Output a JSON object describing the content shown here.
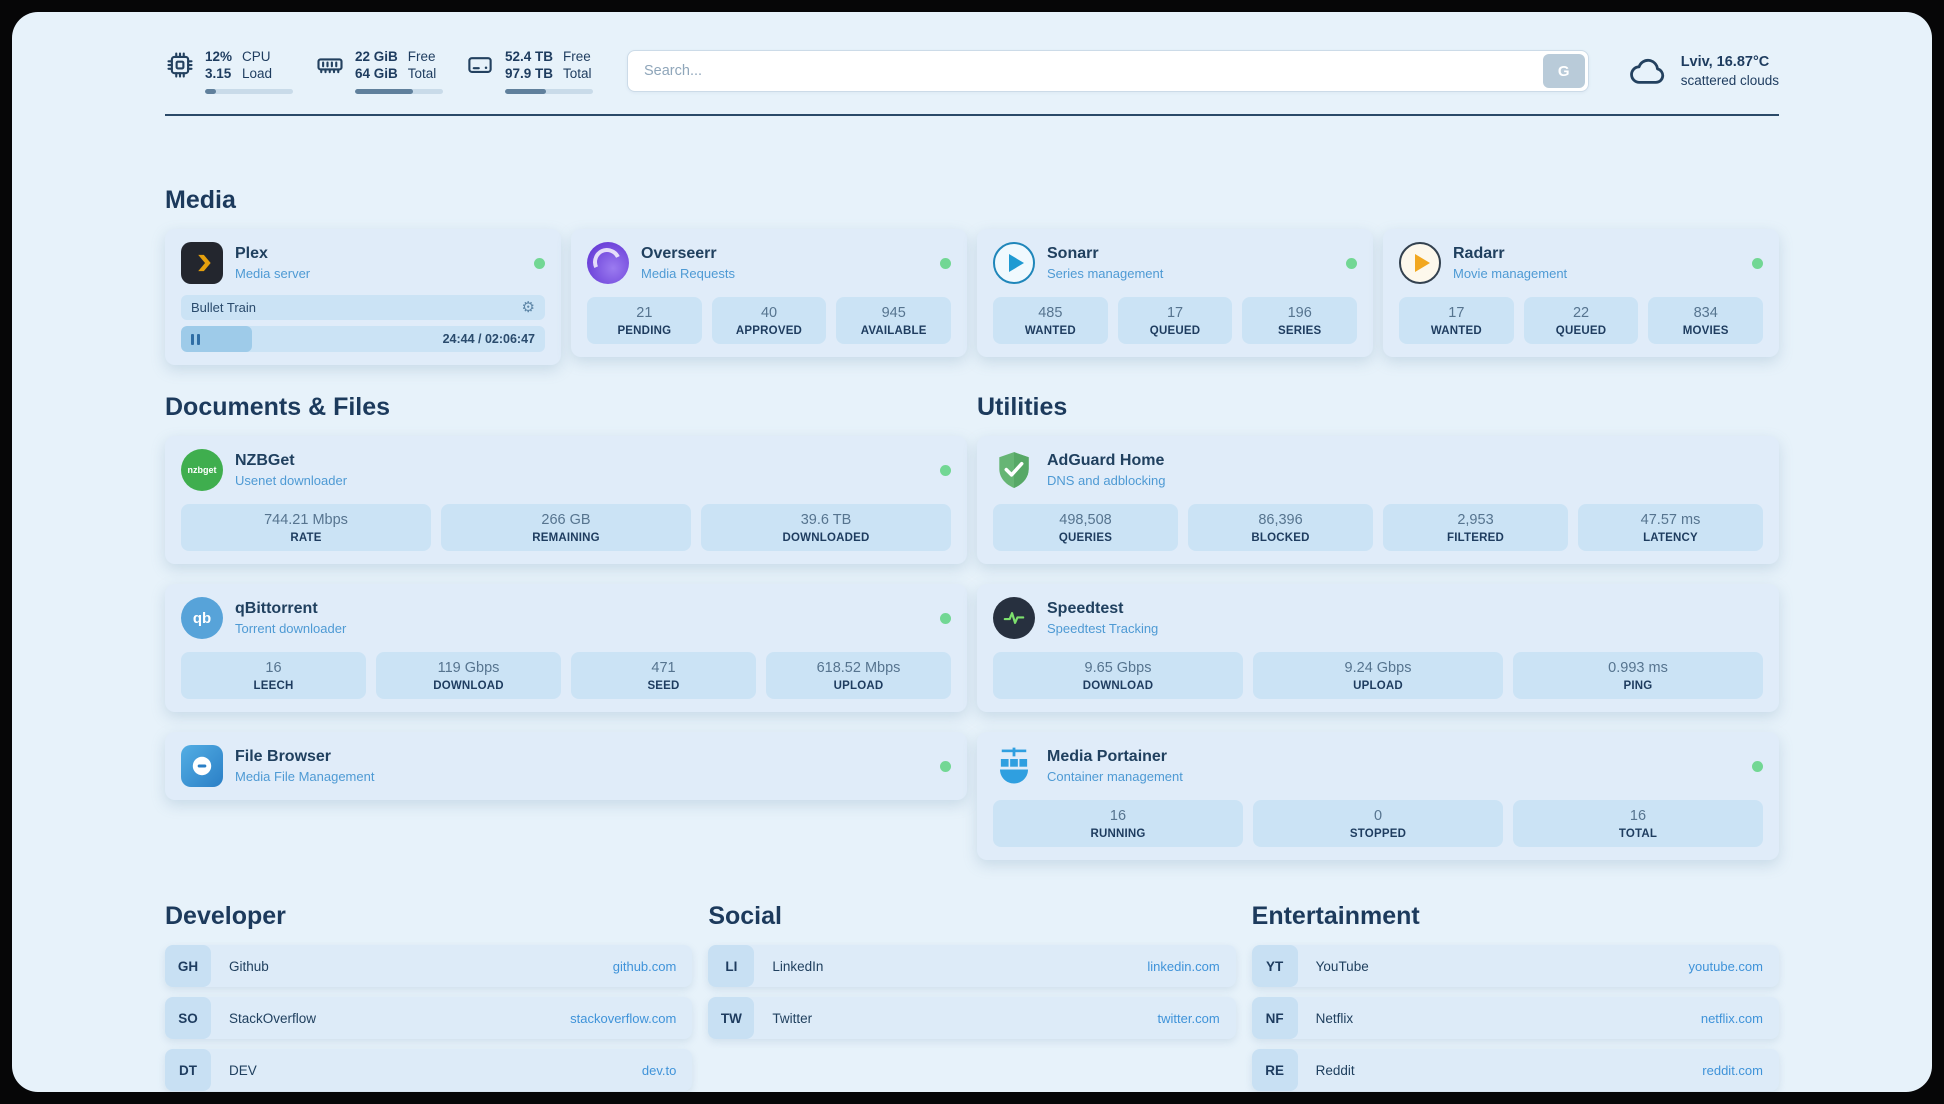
{
  "theme": {
    "page_bg": "#e7f2fa",
    "card_bg": "#e0ecf9",
    "stat_bg": "#cbe3f5",
    "ink": "#1e3c5f",
    "sub_blue": "#4e9ad4",
    "link_blue": "#3f93d9",
    "online_green": "#72d794",
    "bar_fill": "#60809c",
    "bar_track": "#c9dbe9"
  },
  "icons": {
    "gear": "⚙"
  },
  "topbar": {
    "cpu": {
      "value": "12%",
      "sub": "3.15",
      "label_top": "CPU",
      "label_bottom": "Load",
      "percent": 12
    },
    "ram": {
      "value": "22 GiB",
      "sub": "64 GiB",
      "label_top": "Free",
      "label_bottom": "Total",
      "percent": 66
    },
    "disk": {
      "value": "52.4 TB",
      "sub": "97.9 TB",
      "label_top": "Free",
      "label_bottom": "Total",
      "percent": 47
    },
    "search": {
      "placeholder": "Search...",
      "button_label": "G"
    },
    "weather": {
      "location": "Lviv, 16.87°C",
      "description": "scattered clouds"
    }
  },
  "sections": {
    "media": {
      "title": "Media",
      "apps": [
        {
          "name": "Plex",
          "subtitle": "Media server",
          "icon": "plex-icon",
          "online": true,
          "now_playing": {
            "title": "Bullet Train",
            "time": "24:44 / 02:06:47",
            "progress_percent": 19.5
          }
        },
        {
          "name": "Overseerr",
          "subtitle": "Media Requests",
          "icon": "overseerr-icon",
          "online": true,
          "stats": [
            {
              "value": "21",
              "label": "PENDING"
            },
            {
              "value": "40",
              "label": "APPROVED"
            },
            {
              "value": "945",
              "label": "AVAILABLE"
            }
          ]
        },
        {
          "name": "Sonarr",
          "subtitle": "Series management",
          "icon": "sonarr-icon",
          "online": true,
          "stats": [
            {
              "value": "485",
              "label": "WANTED"
            },
            {
              "value": "17",
              "label": "QUEUED"
            },
            {
              "value": "196",
              "label": "SERIES"
            }
          ]
        },
        {
          "name": "Radarr",
          "subtitle": "Movie management",
          "icon": "radarr-icon",
          "online": true,
          "stats": [
            {
              "value": "17",
              "label": "WANTED"
            },
            {
              "value": "22",
              "label": "QUEUED"
            },
            {
              "value": "834",
              "label": "MOVIES"
            }
          ]
        }
      ]
    },
    "documents": {
      "title": "Documents & Files",
      "apps": [
        {
          "name": "NZBGet",
          "subtitle": "Usenet downloader",
          "icon": "nzbget-icon",
          "icon_text": "nzbget",
          "online": true,
          "stats": [
            {
              "value": "744.21 Mbps",
              "label": "RATE"
            },
            {
              "value": "266 GB",
              "label": "REMAINING"
            },
            {
              "value": "39.6 TB",
              "label": "DOWNLOADED"
            }
          ]
        },
        {
          "name": "qBittorrent",
          "subtitle": "Torrent downloader",
          "icon": "qbittorrent-icon",
          "icon_text": "qb",
          "online": true,
          "stats": [
            {
              "value": "16",
              "label": "LEECH"
            },
            {
              "value": "119 Gbps",
              "label": "DOWNLOAD"
            },
            {
              "value": "471",
              "label": "SEED"
            },
            {
              "value": "618.52 Mbps",
              "label": "UPLOAD"
            }
          ]
        },
        {
          "name": "File Browser",
          "subtitle": "Media File Management",
          "icon": "filebrowser-icon",
          "online": true,
          "stats": []
        }
      ]
    },
    "utilities": {
      "title": "Utilities",
      "apps": [
        {
          "name": "AdGuard Home",
          "subtitle": "DNS and adblocking",
          "icon": "adguard-icon",
          "stats": [
            {
              "value": "498,508",
              "label": "QUERIES"
            },
            {
              "value": "86,396",
              "label": "BLOCKED"
            },
            {
              "value": "2,953",
              "label": "FILTERED"
            },
            {
              "value": "47.57 ms",
              "label": "LATENCY"
            }
          ]
        },
        {
          "name": "Speedtest",
          "subtitle": "Speedtest Tracking",
          "icon": "speedtest-icon",
          "stats": [
            {
              "value": "9.65 Gbps",
              "label": "DOWNLOAD"
            },
            {
              "value": "9.24 Gbps",
              "label": "UPLOAD"
            },
            {
              "value": "0.993 ms",
              "label": "PING"
            }
          ]
        },
        {
          "name": "Media Portainer",
          "subtitle": "Container management",
          "icon": "portainer-icon",
          "online": true,
          "stats": [
            {
              "value": "16",
              "label": "RUNNING"
            },
            {
              "value": "0",
              "label": "STOPPED"
            },
            {
              "value": "16",
              "label": "TOTAL"
            }
          ]
        }
      ]
    }
  },
  "bookmarks": [
    {
      "title": "Developer",
      "links": [
        {
          "abbr": "GH",
          "name": "Github",
          "domain": "github.com"
        },
        {
          "abbr": "SO",
          "name": "StackOverflow",
          "domain": "stackoverflow.com"
        },
        {
          "abbr": "DT",
          "name": "DEV",
          "domain": "dev.to"
        }
      ]
    },
    {
      "title": "Social",
      "links": [
        {
          "abbr": "LI",
          "name": "LinkedIn",
          "domain": "linkedin.com"
        },
        {
          "abbr": "TW",
          "name": "Twitter",
          "domain": "twitter.com"
        }
      ]
    },
    {
      "title": "Entertainment",
      "links": [
        {
          "abbr": "YT",
          "name": "YouTube",
          "domain": "youtube.com"
        },
        {
          "abbr": "NF",
          "name": "Netflix",
          "domain": "netflix.com"
        },
        {
          "abbr": "RE",
          "name": "Reddit",
          "domain": "reddit.com"
        }
      ]
    }
  ]
}
